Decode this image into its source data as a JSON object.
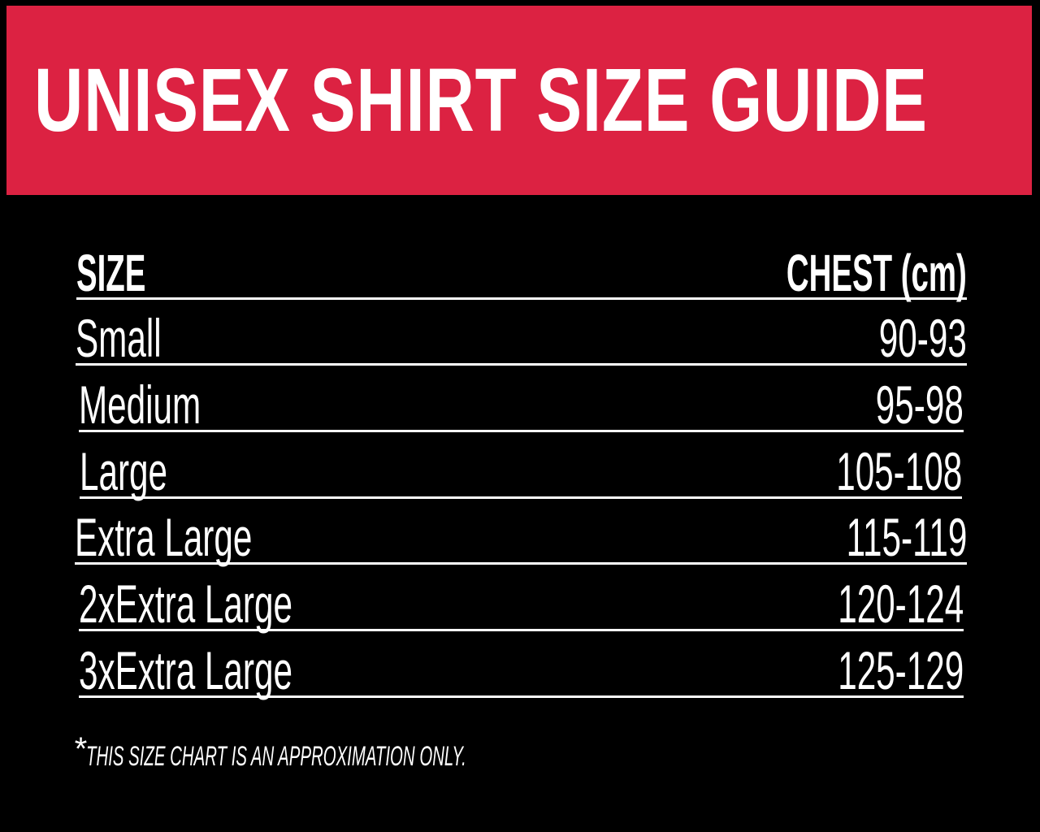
{
  "title": "UNISEX SHIRT SIZE GUIDE",
  "colors": {
    "banner": "#dc2242",
    "background": "#000000",
    "text": "#ffffff"
  },
  "table": {
    "headers": {
      "size": "SIZE",
      "chest": "CHEST (cm)"
    },
    "rows": [
      {
        "size": "Small",
        "chest": "90-93"
      },
      {
        "size": "Medium",
        "chest": "95-98"
      },
      {
        "size": "Large",
        "chest": "105-108"
      },
      {
        "size": "Extra Large",
        "chest": "115-119"
      },
      {
        "size": "2xExtra Large",
        "chest": "120-124"
      },
      {
        "size": "3xExtra Large",
        "chest": "125-129"
      }
    ]
  },
  "footnote": {
    "marker": "*",
    "text": "THIS SIZE CHART IS AN APPROXIMATION ONLY."
  }
}
